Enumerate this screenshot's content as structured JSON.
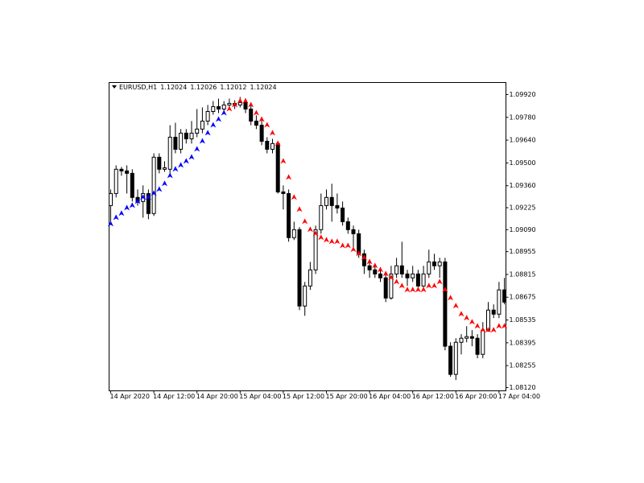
{
  "chart_data": {
    "type": "candlestick",
    "title": "EURUSD,H1",
    "header_values": [
      1.12024,
      1.12026,
      1.12012,
      1.12024
    ],
    "categories": [
      "14 Apr 2020",
      null,
      null,
      null,
      null,
      null,
      null,
      null,
      "14 Apr 12:00",
      null,
      null,
      null,
      null,
      null,
      null,
      null,
      "14 Apr 20:00",
      null,
      null,
      null,
      null,
      null,
      null,
      null,
      "15 Apr 04:00",
      null,
      null,
      null,
      null,
      null,
      null,
      null,
      "15 Apr 12:00",
      null,
      null,
      null,
      null,
      null,
      null,
      null,
      "15 Apr 20:00",
      null,
      null,
      null,
      null,
      null,
      null,
      null,
      "16 Apr 04:00",
      null,
      null,
      null,
      null,
      null,
      null,
      null,
      "16 Apr 12:00",
      null,
      null,
      null,
      null,
      null,
      null,
      null,
      "16 Apr 20:00",
      null,
      null,
      null,
      null,
      null,
      null,
      null,
      "17 Apr 04:00",
      null
    ],
    "open": [
      1.09238,
      1.09312,
      1.09461,
      1.09451,
      1.09436,
      1.09288,
      1.09263,
      1.09312,
      1.09189,
      1.09535,
      1.09461,
      1.09461,
      1.09658,
      1.09584,
      1.09683,
      1.09648,
      1.09683,
      1.09708,
      1.09757,
      1.09816,
      1.09846,
      1.09831,
      1.09856,
      1.09866,
      1.09856,
      1.09871,
      1.09831,
      1.09757,
      1.09732,
      1.09633,
      1.09584,
      1.09619,
      1.09322,
      1.09312,
      1.09041,
      1.0909,
      1.08621,
      1.08744,
      1.08843,
      1.0909,
      1.09238,
      1.09288,
      1.09238,
      1.09223,
      1.09139,
      1.0909,
      1.09065,
      1.08942,
      1.08868,
      1.08843,
      1.08818,
      1.08794,
      1.0867,
      1.08818,
      1.08868,
      1.08818,
      1.08794,
      1.08818,
      1.08744,
      1.08818,
      1.08892,
      1.08868,
      1.08892,
      1.08374,
      1.08201,
      1.08398,
      1.08423,
      1.08433,
      1.08423,
      1.08324,
      1.08473,
      1.08596,
      1.08571,
      1.0872
    ],
    "high": [
      1.09337,
      1.09485,
      1.09475,
      1.09485,
      1.09461,
      1.09337,
      1.09362,
      1.09337,
      1.09559,
      1.09559,
      1.0951,
      1.09732,
      1.09747,
      1.09708,
      1.09708,
      1.09757,
      1.09831,
      1.09841,
      1.09856,
      1.0988,
      1.09895,
      1.0988,
      1.09895,
      1.09885,
      1.09905,
      1.0989,
      1.09856,
      1.09792,
      1.09767,
      1.09658,
      1.09648,
      1.09633,
      1.09362,
      1.09337,
      1.09139,
      1.09105,
      1.08769,
      1.08892,
      1.09115,
      1.09312,
      1.09337,
      1.09372,
      1.09312,
      1.09263,
      1.09164,
      1.09115,
      1.0909,
      1.08967,
      1.08892,
      1.08868,
      1.08843,
      1.08818,
      1.08868,
      1.08917,
      1.09016,
      1.08843,
      1.08868,
      1.08843,
      1.08868,
      1.08967,
      1.08942,
      1.08917,
      1.08917,
      1.08398,
      1.08423,
      1.08448,
      1.08497,
      1.08473,
      1.08448,
      1.08522,
      1.08645,
      1.08631,
      1.08769,
      1.08794
    ],
    "low": [
      1.09139,
      1.09288,
      1.09421,
      1.09312,
      1.09263,
      1.09238,
      1.09164,
      1.09154,
      1.09174,
      1.09436,
      1.09446,
      1.09436,
      1.09559,
      1.09559,
      1.09619,
      1.09619,
      1.09658,
      1.09683,
      1.09732,
      1.09796,
      1.09806,
      1.09806,
      1.09831,
      1.09831,
      1.09841,
      1.09806,
      1.09732,
      1.09708,
      1.09609,
      1.09559,
      1.09559,
      1.09312,
      1.09214,
      1.09016,
      1.09026,
      1.08596,
      1.08561,
      1.0872,
      1.08818,
      1.09065,
      1.09214,
      1.09139,
      1.09189,
      1.09115,
      1.09065,
      1.08967,
      1.08917,
      1.08818,
      1.08794,
      1.08794,
      1.08769,
      1.08645,
      1.0866,
      1.08794,
      1.08794,
      1.08744,
      1.08769,
      1.0872,
      1.0872,
      1.08794,
      1.08843,
      1.08794,
      1.08349,
      1.08186,
      1.08166,
      1.08324,
      1.08398,
      1.08374,
      1.083,
      1.083,
      1.08463,
      1.08547,
      1.08547,
      1.08631
    ],
    "close": [
      1.09312,
      1.09461,
      1.09451,
      1.09436,
      1.09288,
      1.09263,
      1.09312,
      1.09189,
      1.09535,
      1.09461,
      1.0947,
      1.09658,
      1.09584,
      1.09683,
      1.09648,
      1.09683,
      1.09708,
      1.09757,
      1.09816,
      1.09846,
      1.09831,
      1.09856,
      1.09866,
      1.09856,
      1.09871,
      1.09831,
      1.09757,
      1.09732,
      1.09633,
      1.09584,
      1.09619,
      1.09322,
      1.09312,
      1.09041,
      1.0909,
      1.08621,
      1.08744,
      1.08843,
      1.0909,
      1.09238,
      1.09288,
      1.09238,
      1.09223,
      1.09139,
      1.0909,
      1.09065,
      1.08942,
      1.08868,
      1.08843,
      1.08818,
      1.08794,
      1.0867,
      1.08818,
      1.08868,
      1.08818,
      1.08794,
      1.08818,
      1.08744,
      1.08818,
      1.08892,
      1.08868,
      1.08892,
      1.08374,
      1.08201,
      1.08398,
      1.08423,
      1.08433,
      1.08423,
      1.08324,
      1.08473,
      1.08596,
      1.08571,
      1.0872,
      1.08645
    ],
    "sar_up": {
      "color": "#0000ff",
      "values": [
        1.09125,
        1.09164,
        1.09189,
        1.09223,
        1.09238,
        1.09263,
        1.09288,
        1.09288,
        1.09312,
        1.09337,
        1.09372,
        1.09421,
        1.09461,
        1.09485,
        1.0951,
        1.09535,
        1.09584,
        1.09633,
        1.09683,
        1.09732,
        1.09767,
        1.09806,
        null,
        null,
        null,
        null,
        null,
        null,
        null,
        null,
        null,
        null,
        null,
        null,
        null,
        null,
        null,
        null,
        null,
        null,
        null,
        null,
        null,
        null,
        null,
        null,
        null,
        null,
        null,
        null,
        null,
        null,
        null,
        null,
        null,
        null,
        null,
        null,
        null,
        null,
        null,
        null,
        null,
        null,
        null,
        null,
        null,
        null,
        null,
        null,
        null,
        null,
        null,
        null
      ]
    },
    "sar_down": {
      "color": "#ff0000",
      "values": [
        null,
        null,
        null,
        null,
        null,
        null,
        null,
        null,
        null,
        null,
        null,
        null,
        null,
        null,
        null,
        null,
        null,
        null,
        null,
        null,
        null,
        null,
        1.09831,
        1.09856,
        1.0988,
        1.0988,
        1.09856,
        1.09806,
        1.09767,
        1.09732,
        1.09683,
        1.09619,
        1.0951,
        1.09411,
        1.09288,
        1.09214,
        1.09139,
        1.0909,
        1.09065,
        1.09041,
        1.09026,
        1.09016,
        1.09016,
        1.08991,
        1.08991,
        1.08967,
        1.08942,
        1.08917,
        1.08892,
        1.08868,
        1.08843,
        1.08818,
        1.08794,
        1.08769,
        1.08744,
        1.0872,
        1.0872,
        1.0872,
        1.0872,
        1.08744,
        1.08744,
        1.08769,
        1.0872,
        1.0867,
        1.08621,
        1.08571,
        1.08547,
        1.08522,
        1.08497,
        1.08473,
        1.08473,
        1.08473,
        1.08497,
        1.08497
      ]
    },
    "ylim": [
      1.081,
      1.09994
    ],
    "yticks": [
      {
        "value": 1.0992,
        "label": "1.09920"
      },
      {
        "value": 1.0978,
        "label": "1.09780"
      },
      {
        "value": 1.0964,
        "label": "1.09640"
      },
      {
        "value": 1.095,
        "label": "1.09500"
      },
      {
        "value": 1.0936,
        "label": "1.09360"
      },
      1.09225,
      {
        "value": 1.0909,
        "label": "1.09090"
      },
      1.08955,
      1.08815,
      1.08675,
      1.08535,
      1.08395,
      1.08255,
      {
        "value": 1.0812,
        "label": "1.08120"
      }
    ]
  }
}
